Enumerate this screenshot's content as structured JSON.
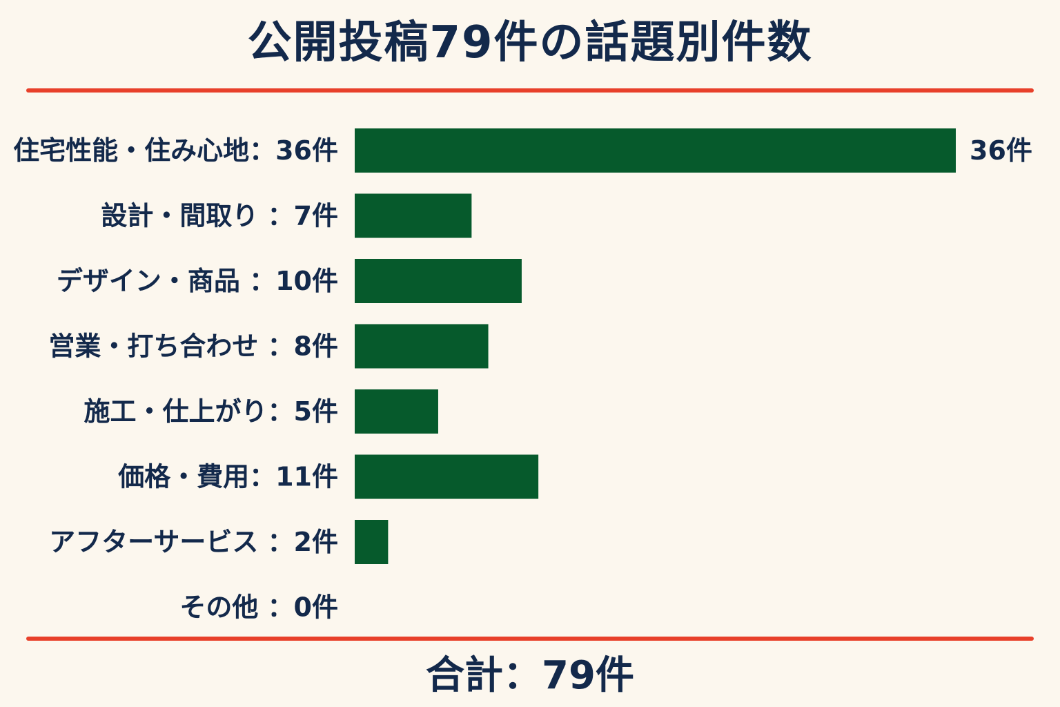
{
  "page": {
    "title": "公開投稿79件の話題別件数",
    "total": "合計：79件"
  },
  "colors": {
    "background": "#fcf7ee",
    "bar": "#065a2c",
    "text": "#13294b",
    "rule": "#e8402a"
  },
  "chart_data": {
    "type": "bar",
    "orientation": "horizontal",
    "title": "公開投稿79件の話題別件数",
    "categories": [
      "住宅性能・住み心地",
      "設計・間取り",
      "デザイン・商品",
      "営業・打ち合わせ",
      "施工・仕上がり",
      "価格・費用",
      "アフターサービス",
      "その他"
    ],
    "labels": [
      "住宅性能・住み心地：36件",
      "設計・間取り ：7件",
      "デザイン・商品 ：10件",
      "営業・打ち合わせ ：8件",
      "施工・仕上がり：5件",
      "価格・費用：11件",
      "アフターサービス ：2件",
      "その他 ：0件"
    ],
    "values": [
      36,
      7,
      10,
      8,
      5,
      11,
      2,
      0
    ],
    "value_labels": [
      "36件",
      "",
      "",
      "",
      "",
      "",
      "",
      ""
    ],
    "xlim": [
      0,
      36
    ],
    "grid": false,
    "legend": "none"
  }
}
